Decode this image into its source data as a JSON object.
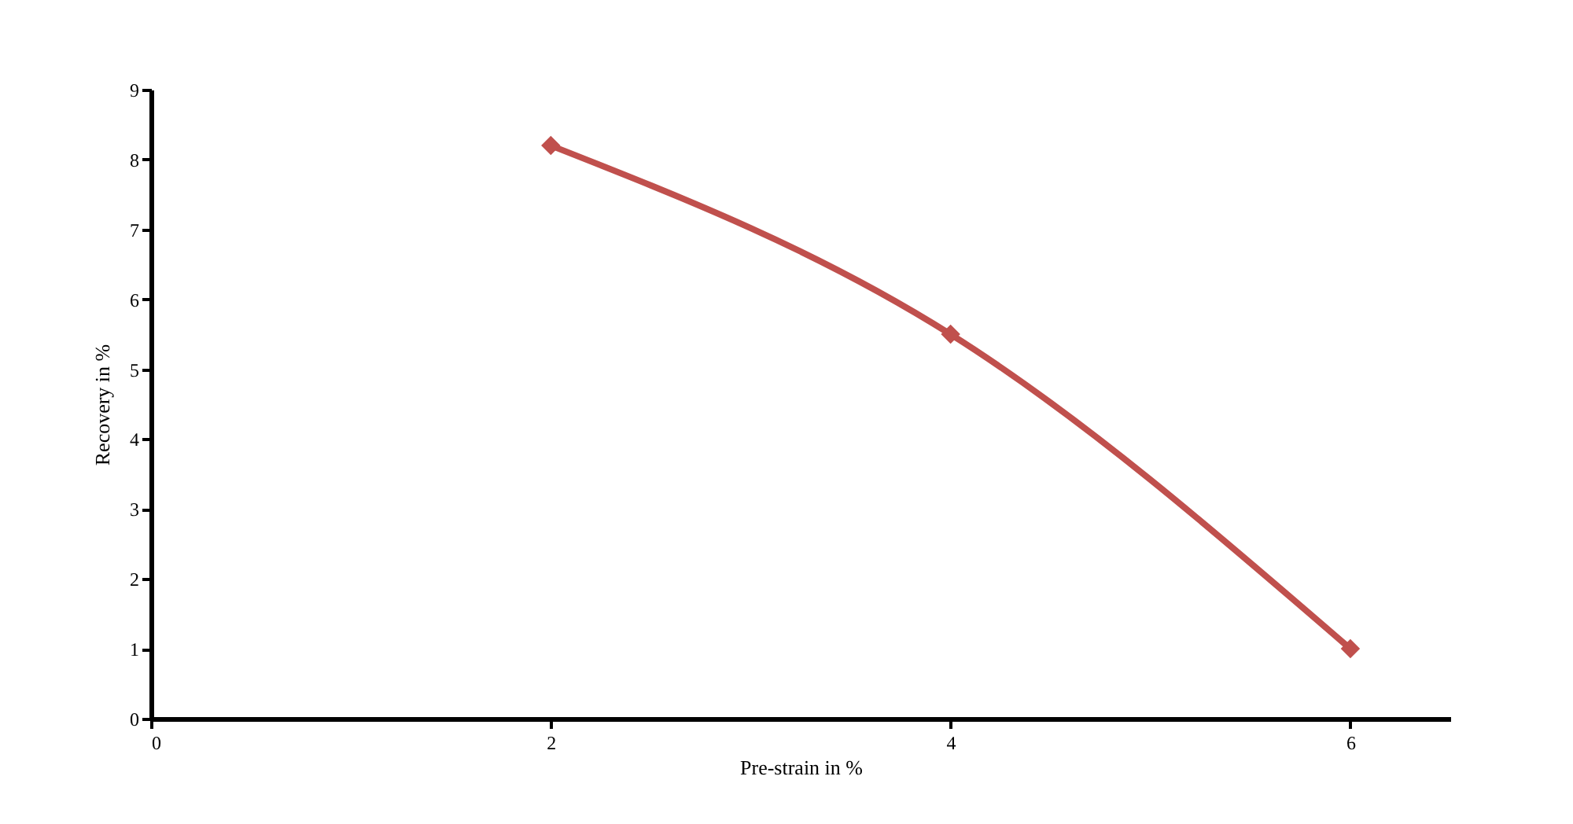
{
  "chart_data": {
    "type": "line",
    "xlabel": "Pre-strain in %",
    "ylabel": "Recovery in %",
    "x": [
      2,
      4,
      6
    ],
    "series": [
      {
        "color": "#c0504d",
        "values": [
          8.2,
          5.5,
          1.0
        ]
      }
    ],
    "xlim": [
      0,
      6.5
    ],
    "xticks": [
      0,
      2,
      4,
      6
    ],
    "ylim": [
      0,
      9
    ],
    "yticks": [
      0,
      1,
      2,
      3,
      4,
      5,
      6,
      7,
      8,
      9
    ],
    "marker": "diamond",
    "line_style": "solid",
    "grid": false,
    "legend": false
  }
}
